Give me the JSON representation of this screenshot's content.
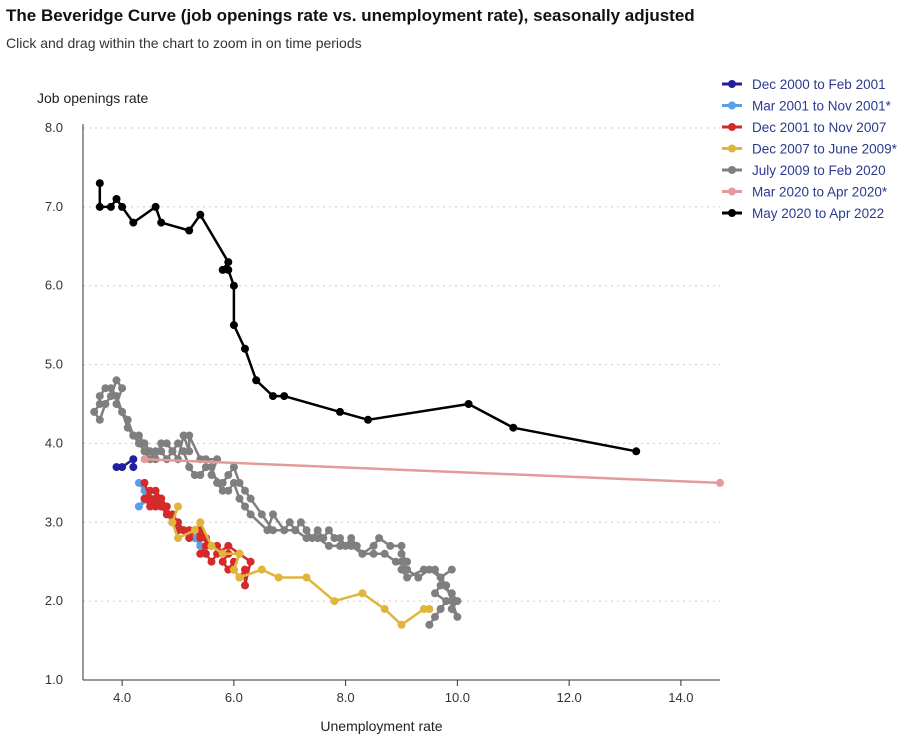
{
  "header": {
    "title": "The Beveridge Curve (job openings rate vs. unemployment rate), seasonally adjusted",
    "subtitle": "Click and drag within the chart to zoom in on time periods"
  },
  "chart_data": {
    "type": "line",
    "title": "The Beveridge Curve (job openings rate vs. unemployment rate), seasonally adjusted",
    "xlabel": "Unemployment rate",
    "ylabel": "Job openings rate",
    "xlim": [
      3.3,
      14.7
    ],
    "ylim": [
      1.0,
      8.0
    ],
    "x_ticks": [
      "4.0",
      "6.0",
      "8.0",
      "10.0",
      "12.0",
      "14.0"
    ],
    "y_ticks": [
      "1.0",
      "2.0",
      "3.0",
      "4.0",
      "5.0",
      "6.0",
      "7.0",
      "8.0"
    ],
    "grid": "horizontal dotted",
    "legend_position": "top-right",
    "series": [
      {
        "name": "Dec 2000 to Feb 2001",
        "color": "#1f1fa0",
        "points": [
          [
            3.9,
            3.7
          ],
          [
            4.0,
            3.7
          ],
          [
            4.2,
            3.8
          ],
          [
            4.2,
            3.7
          ]
        ]
      },
      {
        "name": "Mar 2001 to Nov 2001*",
        "color": "#5aa0e6",
        "points": [
          [
            4.3,
            3.5
          ],
          [
            4.4,
            3.4
          ],
          [
            4.4,
            3.3
          ],
          [
            4.3,
            3.2
          ],
          [
            4.5,
            3.3
          ],
          [
            4.7,
            3.2
          ],
          [
            4.9,
            3.0
          ],
          [
            5.1,
            2.9
          ],
          [
            5.3,
            2.8
          ],
          [
            5.4,
            2.7
          ]
        ]
      },
      {
        "name": "Dec 2001 to Nov 2007",
        "color": "#d42a2a",
        "points": [
          [
            4.4,
            3.5
          ],
          [
            4.5,
            3.3
          ],
          [
            4.6,
            3.3
          ],
          [
            4.6,
            3.4
          ],
          [
            4.7,
            3.3
          ],
          [
            4.7,
            3.2
          ],
          [
            4.8,
            3.1
          ],
          [
            4.9,
            3.1
          ],
          [
            5.0,
            3.0
          ],
          [
            5.1,
            2.9
          ],
          [
            5.2,
            2.9
          ],
          [
            5.3,
            2.9
          ],
          [
            5.4,
            2.8
          ],
          [
            5.4,
            2.9
          ],
          [
            5.5,
            2.8
          ],
          [
            5.6,
            2.7
          ],
          [
            5.7,
            2.7
          ],
          [
            5.8,
            2.6
          ],
          [
            5.9,
            2.6
          ],
          [
            5.8,
            2.5
          ],
          [
            5.9,
            2.4
          ],
          [
            6.0,
            2.5
          ],
          [
            6.0,
            2.4
          ],
          [
            6.1,
            2.3
          ],
          [
            6.2,
            2.4
          ],
          [
            6.2,
            2.2
          ],
          [
            6.3,
            2.5
          ],
          [
            6.1,
            2.6
          ],
          [
            5.9,
            2.7
          ],
          [
            5.7,
            2.6
          ],
          [
            5.6,
            2.5
          ],
          [
            5.5,
            2.6
          ],
          [
            5.4,
            2.6
          ],
          [
            5.5,
            2.7
          ],
          [
            5.5,
            2.8
          ],
          [
            5.3,
            2.9
          ],
          [
            5.2,
            2.8
          ],
          [
            5.1,
            2.9
          ],
          [
            5.0,
            2.9
          ],
          [
            4.9,
            3.0
          ],
          [
            4.8,
            3.2
          ],
          [
            4.7,
            3.3
          ],
          [
            4.6,
            3.2
          ],
          [
            4.5,
            3.3
          ],
          [
            4.5,
            3.2
          ],
          [
            4.4,
            3.3
          ],
          [
            4.5,
            3.4
          ]
        ]
      },
      {
        "name": "Dec 2007 to June 2009*",
        "color": "#e0b53a",
        "points": [
          [
            5.0,
            3.2
          ],
          [
            4.9,
            3.0
          ],
          [
            5.0,
            2.8
          ],
          [
            5.3,
            2.9
          ],
          [
            5.4,
            3.0
          ],
          [
            5.6,
            2.7
          ],
          [
            5.8,
            2.6
          ],
          [
            6.1,
            2.6
          ],
          [
            6.0,
            2.4
          ],
          [
            6.1,
            2.3
          ],
          [
            6.5,
            2.4
          ],
          [
            6.8,
            2.3
          ],
          [
            7.3,
            2.3
          ],
          [
            7.8,
            2.0
          ],
          [
            8.3,
            2.1
          ],
          [
            8.7,
            1.9
          ],
          [
            9.0,
            1.7
          ],
          [
            9.4,
            1.9
          ],
          [
            9.5,
            1.9
          ]
        ]
      },
      {
        "name": "July 2009 to Feb 2020",
        "color": "#7f7f7f",
        "points": [
          [
            9.5,
            1.7
          ],
          [
            9.6,
            1.8
          ],
          [
            9.7,
            1.9
          ],
          [
            9.8,
            2.0
          ],
          [
            9.6,
            2.1
          ],
          [
            9.7,
            2.2
          ],
          [
            9.9,
            2.1
          ],
          [
            10.0,
            2.0
          ],
          [
            9.9,
            1.9
          ],
          [
            10.0,
            1.8
          ],
          [
            9.9,
            2.0
          ],
          [
            9.8,
            2.2
          ],
          [
            9.6,
            2.4
          ],
          [
            9.4,
            2.4
          ],
          [
            9.1,
            2.3
          ],
          [
            9.0,
            2.4
          ],
          [
            9.1,
            2.5
          ],
          [
            9.0,
            2.6
          ],
          [
            9.0,
            2.7
          ],
          [
            8.8,
            2.7
          ],
          [
            8.6,
            2.8
          ],
          [
            8.5,
            2.7
          ],
          [
            8.3,
            2.6
          ],
          [
            8.2,
            2.7
          ],
          [
            8.1,
            2.8
          ],
          [
            8.0,
            2.7
          ],
          [
            7.9,
            2.8
          ],
          [
            7.8,
            2.8
          ],
          [
            7.7,
            2.9
          ],
          [
            7.6,
            2.8
          ],
          [
            7.5,
            2.9
          ],
          [
            7.4,
            2.8
          ],
          [
            7.3,
            2.9
          ],
          [
            7.2,
            3.0
          ],
          [
            7.1,
            2.9
          ],
          [
            7.0,
            3.0
          ],
          [
            6.9,
            2.9
          ],
          [
            6.7,
            3.1
          ],
          [
            6.6,
            2.9
          ],
          [
            6.3,
            3.1
          ],
          [
            6.2,
            3.2
          ],
          [
            6.1,
            3.3
          ],
          [
            6.0,
            3.5
          ],
          [
            5.9,
            3.4
          ],
          [
            5.8,
            3.4
          ],
          [
            5.7,
            3.5
          ],
          [
            5.6,
            3.7
          ],
          [
            5.5,
            3.7
          ],
          [
            5.4,
            3.6
          ],
          [
            5.3,
            3.6
          ],
          [
            5.2,
            3.7
          ],
          [
            5.1,
            3.9
          ],
          [
            5.0,
            4.0
          ],
          [
            4.9,
            3.9
          ],
          [
            4.8,
            3.8
          ],
          [
            4.7,
            3.9
          ],
          [
            4.6,
            3.9
          ],
          [
            4.5,
            3.8
          ],
          [
            4.4,
            3.9
          ],
          [
            4.3,
            4.0
          ],
          [
            4.2,
            4.1
          ],
          [
            4.1,
            4.2
          ],
          [
            4.0,
            4.4
          ],
          [
            3.9,
            4.6
          ],
          [
            3.8,
            4.7
          ],
          [
            3.7,
            4.7
          ],
          [
            3.6,
            4.6
          ],
          [
            3.6,
            4.5
          ],
          [
            3.5,
            4.4
          ],
          [
            3.6,
            4.3
          ],
          [
            3.7,
            4.5
          ],
          [
            3.8,
            4.6
          ],
          [
            3.9,
            4.8
          ],
          [
            4.0,
            4.7
          ],
          [
            3.9,
            4.5
          ],
          [
            4.0,
            4.4
          ],
          [
            4.1,
            4.3
          ],
          [
            4.2,
            4.1
          ],
          [
            4.3,
            4.1
          ],
          [
            4.4,
            4.0
          ],
          [
            4.5,
            3.9
          ],
          [
            4.6,
            3.8
          ],
          [
            4.7,
            4.0
          ],
          [
            4.8,
            4.0
          ],
          [
            4.9,
            3.9
          ],
          [
            5.0,
            3.8
          ],
          [
            5.1,
            4.1
          ],
          [
            5.2,
            3.9
          ],
          [
            5.2,
            4.1
          ],
          [
            5.4,
            3.8
          ],
          [
            5.5,
            3.8
          ],
          [
            5.7,
            3.8
          ],
          [
            5.6,
            3.6
          ],
          [
            5.8,
            3.5
          ],
          [
            5.9,
            3.6
          ],
          [
            6.0,
            3.7
          ],
          [
            6.1,
            3.5
          ],
          [
            6.2,
            3.4
          ],
          [
            6.3,
            3.3
          ],
          [
            6.5,
            3.1
          ],
          [
            6.7,
            2.9
          ],
          [
            6.9,
            2.9
          ],
          [
            7.1,
            2.9
          ],
          [
            7.3,
            2.8
          ],
          [
            7.5,
            2.8
          ],
          [
            7.7,
            2.7
          ],
          [
            7.9,
            2.7
          ],
          [
            8.1,
            2.7
          ],
          [
            8.3,
            2.6
          ],
          [
            8.5,
            2.6
          ],
          [
            8.7,
            2.6
          ],
          [
            8.9,
            2.5
          ],
          [
            9.0,
            2.5
          ],
          [
            9.1,
            2.4
          ],
          [
            9.3,
            2.3
          ],
          [
            9.5,
            2.4
          ],
          [
            9.7,
            2.3
          ],
          [
            9.9,
            2.4
          ]
        ]
      },
      {
        "name": "Mar 2020 to Apr 2020*",
        "color": "#e59a9a",
        "points": [
          [
            4.4,
            3.8
          ],
          [
            14.7,
            3.5
          ]
        ]
      },
      {
        "name": "May 2020 to Apr 2022",
        "color": "#000000",
        "points": [
          [
            13.2,
            3.9
          ],
          [
            11.0,
            4.2
          ],
          [
            10.2,
            4.5
          ],
          [
            8.4,
            4.3
          ],
          [
            7.9,
            4.4
          ],
          [
            6.9,
            4.6
          ],
          [
            6.7,
            4.6
          ],
          [
            6.4,
            4.8
          ],
          [
            6.2,
            5.2
          ],
          [
            6.0,
            5.5
          ],
          [
            6.0,
            6.0
          ],
          [
            5.9,
            6.2
          ],
          [
            5.8,
            6.2
          ],
          [
            5.9,
            6.3
          ],
          [
            5.4,
            6.9
          ],
          [
            5.2,
            6.7
          ],
          [
            4.7,
            6.8
          ],
          [
            4.6,
            7.0
          ],
          [
            4.2,
            6.8
          ],
          [
            4.0,
            7.0
          ],
          [
            3.9,
            7.1
          ],
          [
            3.8,
            7.0
          ],
          [
            3.6,
            7.0
          ],
          [
            3.6,
            7.3
          ]
        ]
      }
    ]
  }
}
